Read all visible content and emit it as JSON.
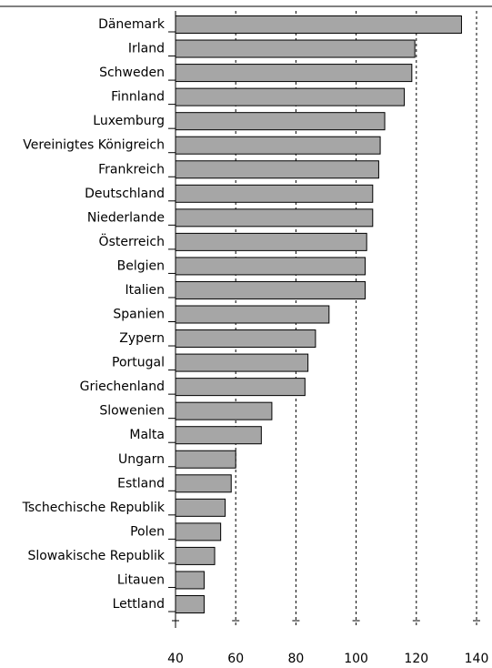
{
  "chart_data": {
    "type": "bar",
    "orientation": "horizontal",
    "categories": [
      "Dänemark",
      "Irland",
      "Schweden",
      "Finnland",
      "Luxemburg",
      "Vereinigtes Königreich",
      "Frankreich",
      "Deutschland",
      "Niederlande",
      "Österreich",
      "Belgien",
      "Italien",
      "Spanien",
      "Zypern",
      "Portugal",
      "Griechenland",
      "Slowenien",
      "Malta",
      "Ungarn",
      "Estland",
      "Tschechische Republik",
      "Polen",
      "Slowakische Republik",
      "Litauen",
      "Lettland"
    ],
    "values": [
      135,
      119.5,
      118.5,
      116,
      109.5,
      108,
      107.5,
      105.5,
      105.5,
      103.5,
      103,
      103,
      91,
      86.5,
      84,
      83,
      72,
      68.5,
      60,
      58.5,
      56.5,
      55,
      53,
      49.5,
      49.5
    ],
    "color": "#a6a6a6",
    "xlim": [
      40,
      140
    ],
    "xticks": [
      40,
      60,
      80,
      100,
      120,
      140
    ],
    "grid": true
  }
}
